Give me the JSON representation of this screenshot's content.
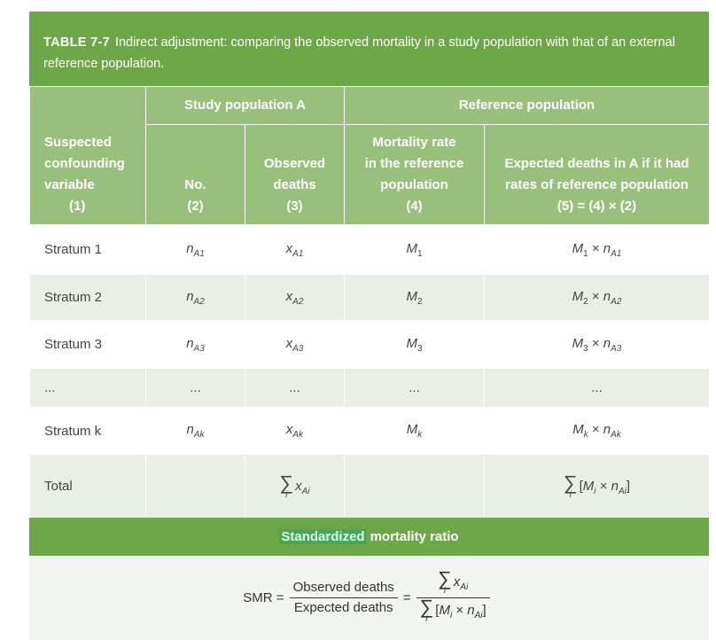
{
  "title": {
    "number": "TABLE 7-7",
    "text": "Indirect adjustment: comparing the observed mortality in a study population with that of an external reference population."
  },
  "headers": {
    "group_study": "Study population A",
    "group_reference": "Reference population",
    "col1": [
      "Suspected",
      "confounding",
      "variable",
      "(1)"
    ],
    "col2": [
      "No.",
      "(2)"
    ],
    "col3": [
      "Observed",
      "deaths",
      "(3)"
    ],
    "col4": [
      "Mortality rate",
      "in the reference",
      "population",
      "(4)"
    ],
    "col5": [
      "Expected deaths in A if it had",
      "rates of reference population",
      "(5) = (4) × (2)"
    ]
  },
  "rows": [
    {
      "label": "Stratum 1",
      "n": "n",
      "n_sub": "A1",
      "x": "x",
      "x_sub": "A1",
      "m": "M",
      "m_sub": "1",
      "e_m": "M",
      "e_m_sub": "1",
      "e_n": "n",
      "e_n_sub": "A1"
    },
    {
      "label": "Stratum 2",
      "n": "n",
      "n_sub": "A2",
      "x": "x",
      "x_sub": "A2",
      "m": "M",
      "m_sub": "2",
      "e_m": "M",
      "e_m_sub": "2",
      "e_n": "n",
      "e_n_sub": "A2"
    },
    {
      "label": "Stratum 3",
      "n": "n",
      "n_sub": "A3",
      "x": "x",
      "x_sub": "A3",
      "m": "M",
      "m_sub": "3",
      "e_m": "M",
      "e_m_sub": "3",
      "e_n": "n",
      "e_n_sub": "A3"
    },
    {
      "label": "...",
      "dots": "..."
    },
    {
      "label": "Stratum k",
      "n": "n",
      "n_sub": "Ak",
      "x": "x",
      "x_sub": "Ak",
      "m": "M",
      "m_sub": "k",
      "e_m": "M",
      "e_m_sub": "k",
      "e_n": "n",
      "e_n_sub": "Ak"
    }
  ],
  "total": {
    "label": "Total",
    "sigma_index": "i",
    "x": "x",
    "x_sub": "Ai",
    "expected_inner_m": "M",
    "expected_inner_m_sub": "i",
    "expected_inner_n": "n",
    "expected_inner_n_sub": "Ai"
  },
  "smr": {
    "highlight": "Standardized",
    "rest": "mortality ratio",
    "lhs": "SMR =",
    "frac_num": "Observed deaths",
    "frac_den": "Expected deaths",
    "equals": "="
  },
  "colors": {
    "title_bg": "#6ea748",
    "header_bg": "#98bf7c",
    "row_alt": "#e9efe4",
    "formula_bg": "#f3f6f0"
  }
}
